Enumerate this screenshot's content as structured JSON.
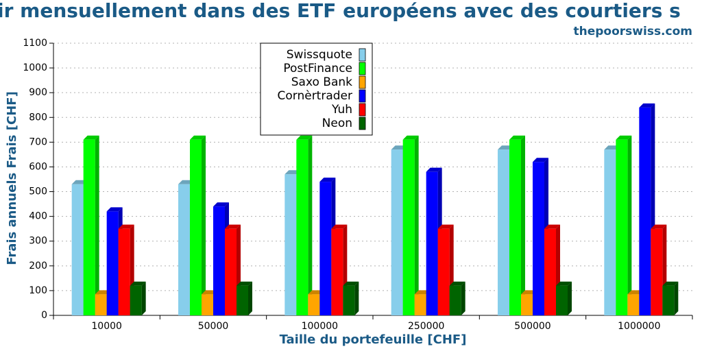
{
  "chart_data": {
    "type": "bar3d",
    "title": "ir mensuellement dans des ETF européens avec des courtiers s",
    "subtitle": "thepoorswiss.com",
    "x_label": "Taille du portefeuille [CHF]",
    "y_label": "Frais annuels Frais [CHF]",
    "categories": [
      "10000",
      "50000",
      "100000",
      "250000",
      "500000",
      "1000000"
    ],
    "series": [
      {
        "name": "Swissquote",
        "color": "#87ceeb",
        "values": [
          530,
          530,
          570,
          670,
          670,
          670
        ]
      },
      {
        "name": "PostFinance",
        "color": "#00ff00",
        "values": [
          710,
          710,
          710,
          710,
          710,
          710
        ]
      },
      {
        "name": "Saxo Bank",
        "color": "#ffa500",
        "values": [
          85,
          85,
          85,
          85,
          85,
          85
        ]
      },
      {
        "name": "Cornèrtrader",
        "color": "#0000ff",
        "values": [
          420,
          440,
          540,
          580,
          620,
          840
        ]
      },
      {
        "name": "Yuh",
        "color": "#ff0000",
        "values": [
          350,
          350,
          350,
          350,
          350,
          350
        ]
      },
      {
        "name": "Neon",
        "color": "#006400",
        "values": [
          120,
          120,
          120,
          120,
          120,
          120
        ]
      }
    ],
    "ylim": [
      0,
      1100
    ],
    "yticks": [
      0,
      100,
      200,
      300,
      400,
      500,
      600,
      700,
      800,
      900,
      1000,
      1100
    ],
    "grid": true,
    "legend": "upper center"
  }
}
